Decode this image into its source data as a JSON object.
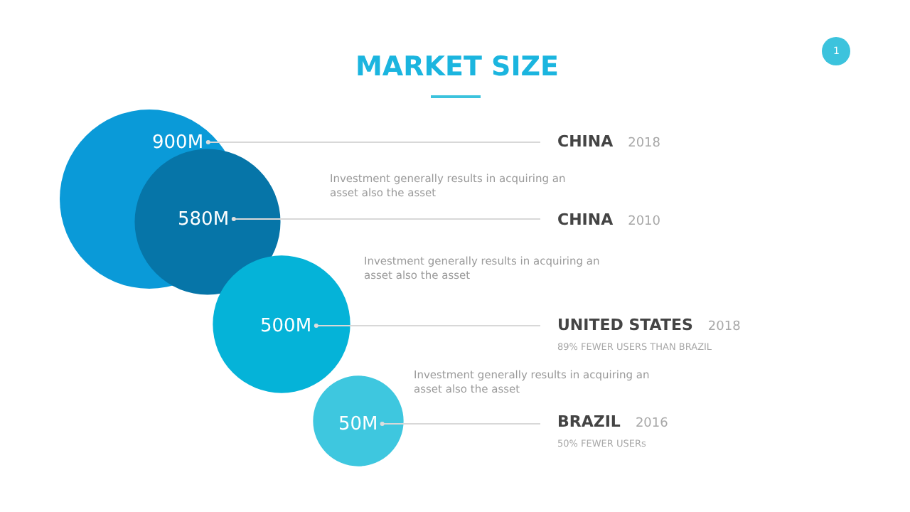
{
  "chart_data": {
    "type": "other",
    "title": "MARKET SIZE",
    "categories": [
      "CHINA",
      "CHINA",
      "UNITED STATES",
      "BRAZIL"
    ],
    "values": [
      900,
      580,
      500,
      50
    ],
    "value_labels": [
      "900M",
      "580M",
      "500M",
      "50M"
    ],
    "colors": [
      "#0a9ad8",
      "#0675a8",
      "#05b3d8",
      "#3ec7df"
    ],
    "annotations": [
      "2018",
      "2010",
      "2018",
      "2016",
      "Investment generally results in acquiring an\nasset also the asset",
      "Investment generally results in acquiring an\nasset also the asset",
      "Investment generally results in acquiring an\nasset also the asset",
      "89% FEWER USERS THAN BRAZIL",
      "50% FEWER USERs",
      "1"
    ]
  }
}
